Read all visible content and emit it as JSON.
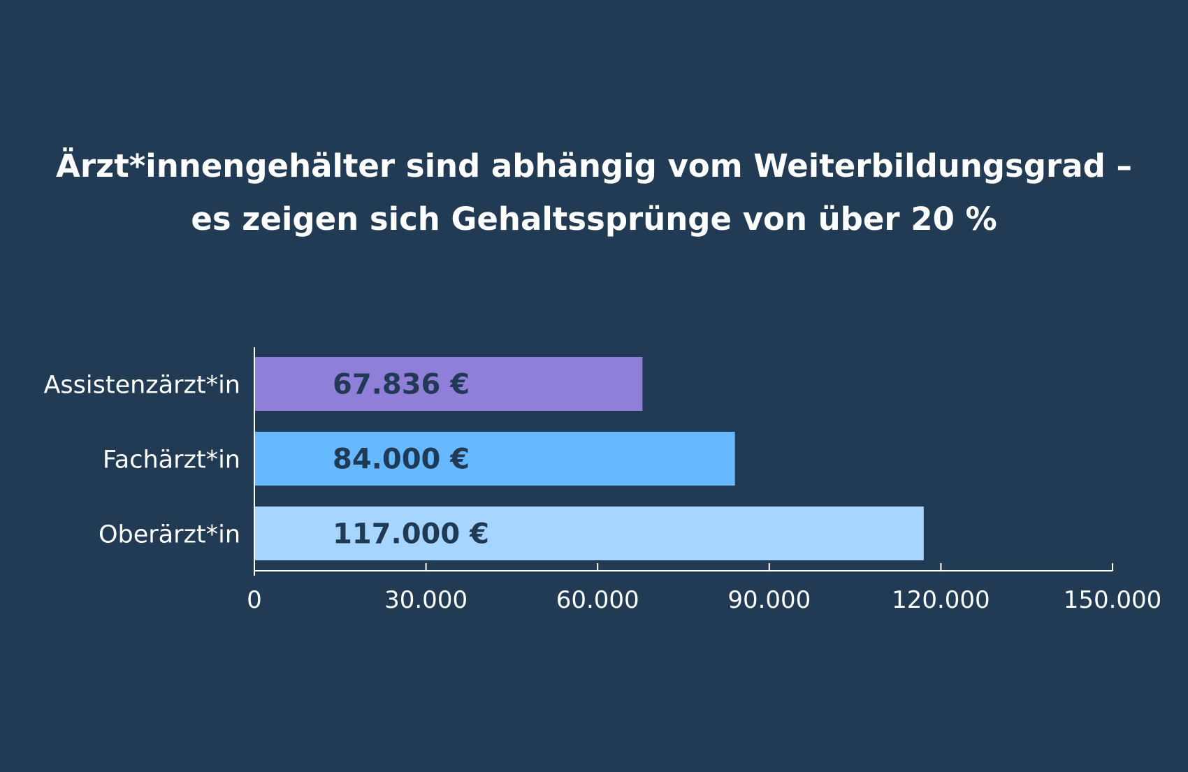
{
  "chart_data": {
    "type": "bar",
    "orientation": "horizontal",
    "title_lines": [
      "Ärzt*innengehälter sind abhängig vom Weiterbildungsgrad –",
      "es zeigen sich Gehaltssprünge von über 20 %"
    ],
    "categories": [
      "Assistenzärzt*in",
      "Fachärzt*in",
      "Oberärzt*in"
    ],
    "values": [
      67836,
      84000,
      117000
    ],
    "value_labels": [
      "67.836 €",
      "84.000 €",
      "117.000 €"
    ],
    "colors": [
      "#8f7fd8",
      "#66b8ff",
      "#a6d5ff"
    ],
    "xlim": [
      0,
      150000
    ],
    "x_ticks": [
      0,
      30000,
      60000,
      90000,
      120000,
      150000
    ],
    "x_tick_labels": [
      "0",
      "30.000",
      "60.000",
      "90.000",
      "120.000",
      "150.000"
    ],
    "grid": false,
    "legend": "none"
  },
  "colors": {
    "background": "#203b53",
    "text": "#ffffff",
    "value_text": "#1f3a52",
    "axis": "#ffffff"
  }
}
